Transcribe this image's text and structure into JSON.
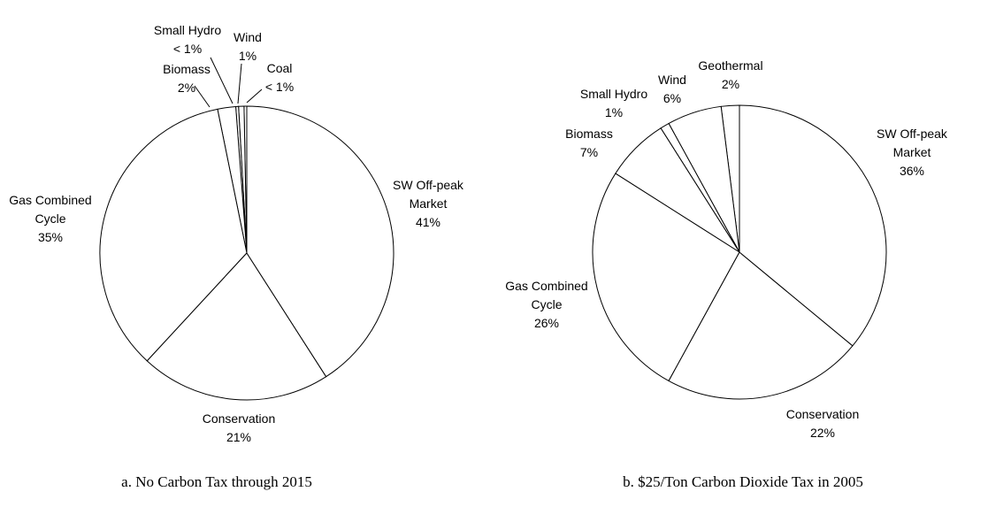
{
  "chart_data": [
    {
      "type": "pie",
      "caption": "a. No Carbon Tax through 2015",
      "slices": [
        {
          "lines": [
            "SW Off-peak",
            "Market",
            "41%"
          ],
          "value": 41
        },
        {
          "lines": [
            "Conservation",
            "21%"
          ],
          "value": 21
        },
        {
          "lines": [
            "Gas Combined",
            "Cycle",
            "35%"
          ],
          "value": 35
        },
        {
          "lines": [
            "Biomass",
            "2%"
          ],
          "value": 2
        },
        {
          "lines": [
            "Small Hydro",
            "< 1%"
          ],
          "value": 0.3
        },
        {
          "lines": [
            "Wind",
            "1%"
          ],
          "value": 0.6
        },
        {
          "lines": [
            "Coal",
            "< 1%"
          ],
          "value": 0.3
        }
      ]
    },
    {
      "type": "pie",
      "caption": "b. $25/Ton  Carbon Dioxide Tax in 2005",
      "slices": [
        {
          "lines": [
            "SW Off-peak",
            "Market",
            "36%"
          ],
          "value": 36
        },
        {
          "lines": [
            "Conservation",
            "22%"
          ],
          "value": 22
        },
        {
          "lines": [
            "Gas Combined",
            "Cycle",
            "26%"
          ],
          "value": 26
        },
        {
          "lines": [
            "Biomass",
            "7%"
          ],
          "value": 7
        },
        {
          "lines": [
            "Small Hydro",
            "1%"
          ],
          "value": 1
        },
        {
          "lines": [
            "Wind",
            "6%"
          ],
          "value": 6
        },
        {
          "lines": [
            "Geothermal",
            "2%"
          ],
          "value": 2
        }
      ]
    }
  ]
}
